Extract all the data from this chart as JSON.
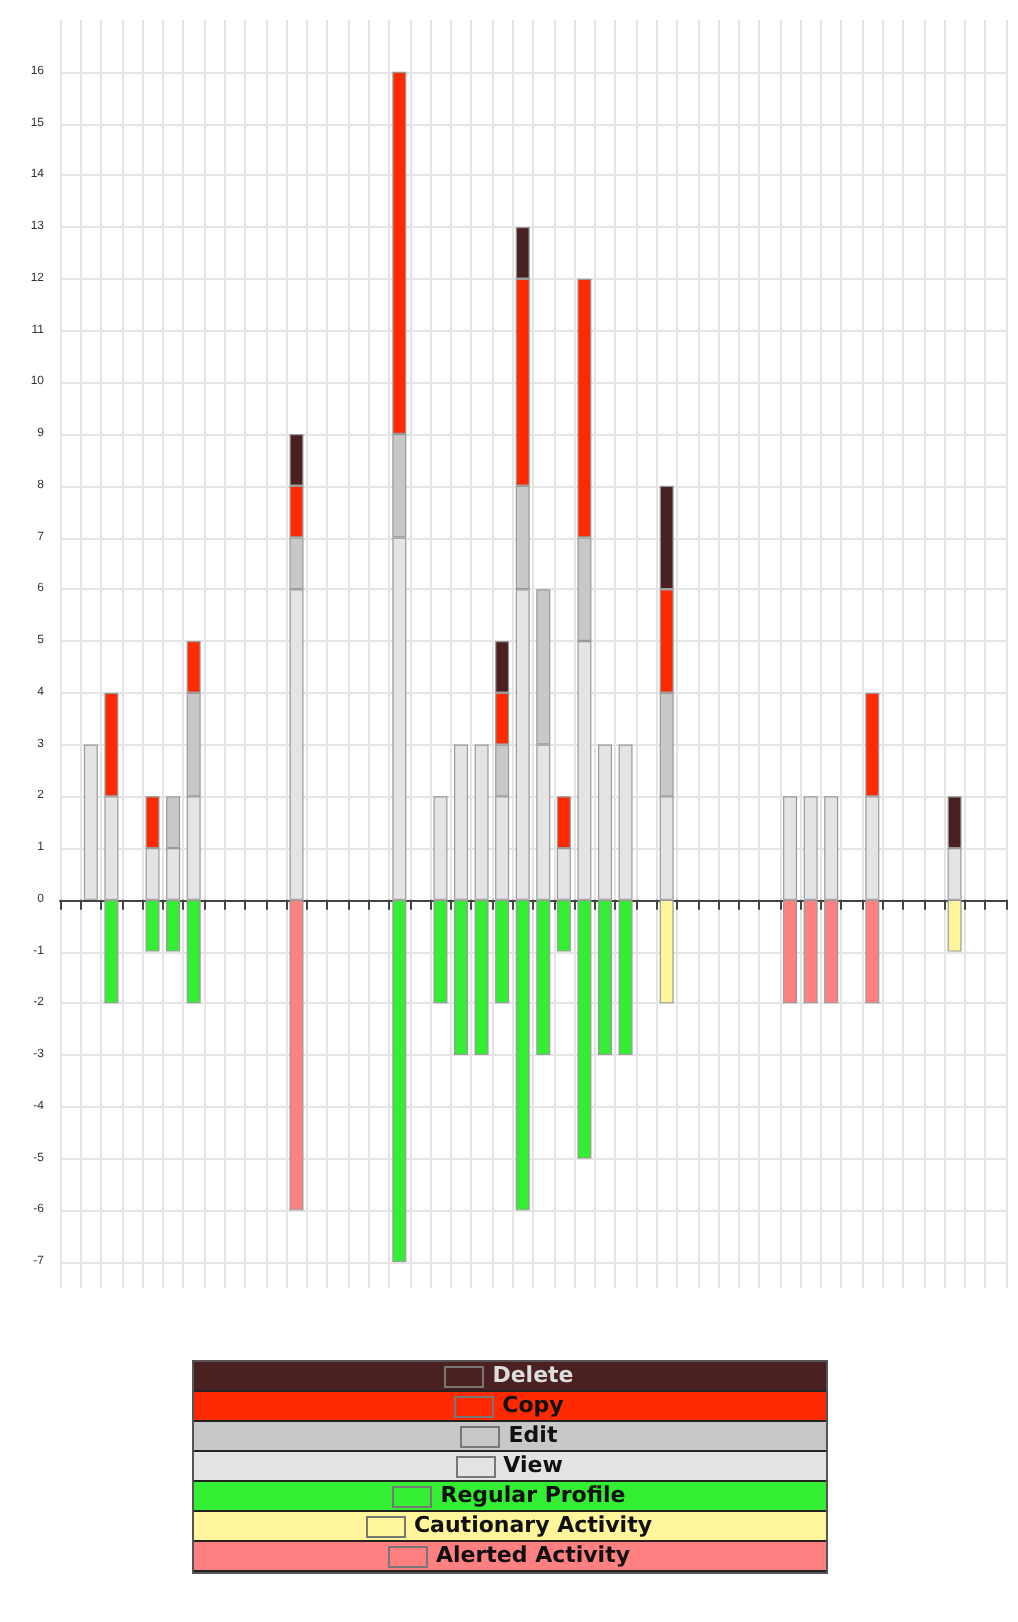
{
  "chart_data": {
    "type": "bar",
    "stacked": true,
    "categories": [
      null,
      null,
      null,
      null,
      null,
      null,
      null,
      null,
      null,
      null,
      null,
      null,
      null,
      null,
      null,
      null,
      null,
      null,
      null,
      null,
      null,
      null,
      null,
      null,
      null,
      null,
      null,
      null,
      null,
      null,
      null,
      null,
      null,
      null,
      null,
      null,
      null,
      null,
      null,
      null,
      null,
      null,
      null,
      null,
      null,
      null
    ],
    "series": [
      {
        "name": "View",
        "color": "#e4e4e4",
        "values": [
          null,
          3,
          2,
          null,
          1,
          1,
          2,
          null,
          null,
          null,
          null,
          6,
          null,
          null,
          null,
          null,
          7,
          null,
          2,
          3,
          3,
          2,
          6,
          3,
          1,
          5,
          3,
          3,
          null,
          2,
          null,
          null,
          null,
          null,
          null,
          2,
          2,
          2,
          null,
          2,
          null,
          null,
          null,
          1,
          null,
          null
        ]
      },
      {
        "name": "Edit",
        "color": "#c8c8c8",
        "values": [
          null,
          null,
          null,
          null,
          null,
          1,
          2,
          null,
          null,
          null,
          null,
          1,
          null,
          null,
          null,
          null,
          2,
          null,
          null,
          null,
          null,
          1,
          2,
          3,
          null,
          2,
          null,
          null,
          null,
          2,
          null,
          null,
          null,
          null,
          null,
          null,
          null,
          null,
          null,
          null,
          null,
          null,
          null,
          null,
          null,
          null
        ]
      },
      {
        "name": "Copy",
        "color": "#ff2a00",
        "values": [
          null,
          null,
          2,
          null,
          1,
          null,
          1,
          null,
          null,
          null,
          null,
          1,
          null,
          null,
          null,
          null,
          7,
          null,
          null,
          null,
          null,
          1,
          4,
          null,
          1,
          5,
          null,
          null,
          null,
          2,
          null,
          null,
          null,
          null,
          null,
          null,
          null,
          null,
          null,
          2,
          null,
          null,
          null,
          null,
          null,
          null
        ]
      },
      {
        "name": "Delete",
        "color": "#4a2020",
        "values": [
          null,
          null,
          null,
          null,
          null,
          null,
          null,
          null,
          null,
          null,
          null,
          1,
          null,
          null,
          null,
          null,
          null,
          null,
          null,
          null,
          null,
          1,
          1,
          null,
          null,
          null,
          null,
          null,
          null,
          2,
          null,
          null,
          null,
          null,
          null,
          null,
          null,
          null,
          null,
          null,
          null,
          null,
          null,
          1,
          null,
          null
        ]
      },
      {
        "name": "Regular Profile",
        "color": "#33ee33",
        "values": [
          null,
          null,
          -2,
          null,
          -1,
          -1,
          -2,
          null,
          null,
          null,
          null,
          null,
          null,
          null,
          null,
          null,
          -7,
          null,
          -2,
          -3,
          -3,
          -2,
          -6,
          -3,
          -1,
          -5,
          -3,
          -3,
          null,
          null,
          null,
          null,
          null,
          null,
          null,
          null,
          null,
          null,
          null,
          null,
          null,
          null,
          null,
          null,
          null,
          null
        ]
      },
      {
        "name": "Cautionary Activity",
        "color": "#fff59a",
        "values": [
          null,
          null,
          null,
          null,
          null,
          null,
          null,
          null,
          null,
          null,
          null,
          null,
          null,
          null,
          null,
          null,
          null,
          null,
          null,
          null,
          null,
          null,
          null,
          null,
          null,
          null,
          null,
          null,
          null,
          -2,
          null,
          null,
          null,
          null,
          null,
          null,
          null,
          null,
          null,
          null,
          null,
          null,
          null,
          -1,
          null,
          null
        ]
      },
      {
        "name": "Alerted Activity",
        "color": "#ff8080",
        "values": [
          null,
          null,
          null,
          null,
          null,
          null,
          null,
          null,
          null,
          null,
          null,
          -6,
          null,
          null,
          null,
          null,
          null,
          null,
          null,
          null,
          null,
          null,
          null,
          null,
          null,
          null,
          null,
          null,
          null,
          null,
          null,
          null,
          null,
          null,
          null,
          -2,
          -2,
          -2,
          null,
          -2,
          null,
          null,
          null,
          null,
          null,
          null
        ]
      }
    ],
    "ylim": [
      -7.5,
      17
    ],
    "yticks": [
      -7,
      -6,
      -5,
      -4,
      -3,
      -2,
      -1,
      0,
      1,
      2,
      3,
      4,
      5,
      6,
      7,
      8,
      9,
      10,
      11,
      12,
      13,
      14,
      15,
      16
    ],
    "grid": true,
    "legend": "bottom"
  }
}
